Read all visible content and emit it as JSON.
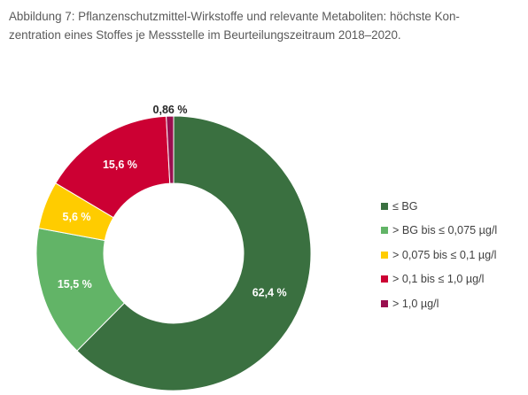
{
  "caption": {
    "line1": "Abbildung 7: Pflanzenschutzmittel-Wirkstoffe und relevante Metaboliten: höchste Kon-",
    "line2": "zentration eines Stoffes je Messstelle im Beurteilungszeitraum 2018–2020."
  },
  "chart_data": {
    "type": "pie",
    "variant": "donut",
    "title": "",
    "unit": "%",
    "legend_position": "right",
    "slices": [
      {
        "label": "≤ BG",
        "value": 62.4,
        "display": "62,4 %",
        "color": "#3a7040"
      },
      {
        "label": "> BG bis ≤ 0,075 µg/l",
        "value": 15.5,
        "display": "15,5 %",
        "color": "#62b467"
      },
      {
        "label": "> 0,075 bis ≤ 0,1 µg/l",
        "value": 5.6,
        "display": "5,6 %",
        "color": "#ffcc00"
      },
      {
        "label": "> 0,1 bis ≤ 1,0 µg/l",
        "value": 15.6,
        "display": "15,6 %",
        "color": "#cc0033"
      },
      {
        "label": "> 1,0 µg/l",
        "value": 0.86,
        "display": "0,86 %",
        "color": "#990f4f"
      }
    ]
  }
}
